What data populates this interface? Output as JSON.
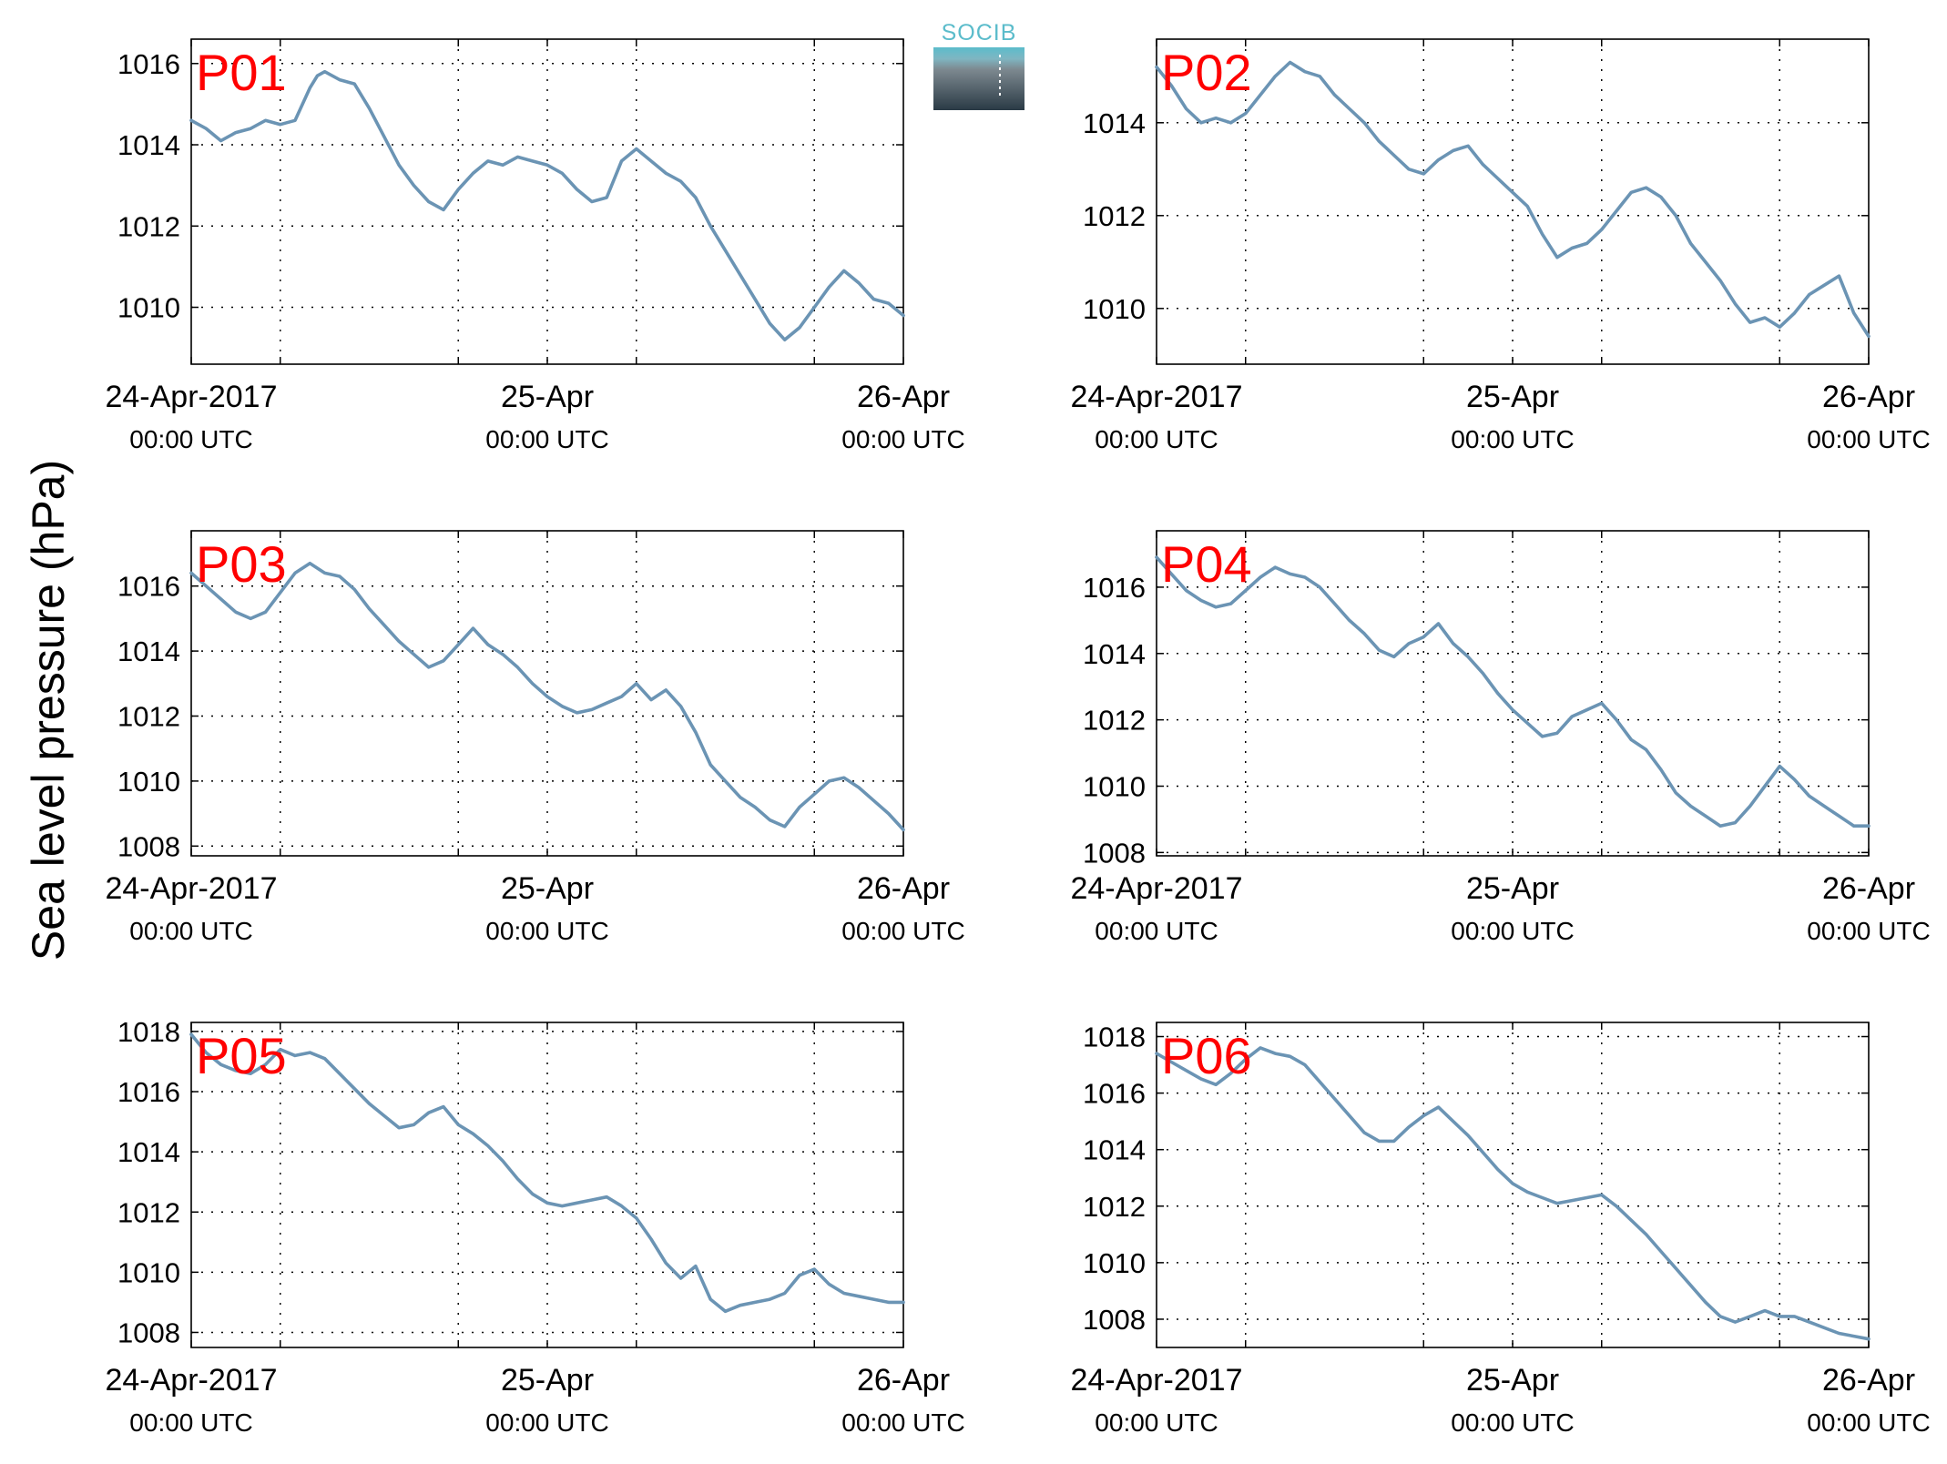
{
  "chart_data": {
    "type": "line",
    "ylabel": "Sea level pressure (hPa)",
    "logo_text": "SOCIB",
    "line_color": "#6b94b4",
    "label_color": "#ff0000",
    "x_ticks": [
      {
        "x": 0,
        "date": "24-Apr-2017",
        "time": "00:00 UTC"
      },
      {
        "x": 24,
        "date": "25-Apr",
        "time": "00:00 UTC"
      },
      {
        "x": 48,
        "date": "26-Apr",
        "time": "00:00 UTC"
      }
    ],
    "x_gridlines": [
      6,
      18,
      30,
      42
    ],
    "xlim": [
      0,
      48
    ],
    "grid": "dotted",
    "panels": [
      {
        "name": "P01",
        "ylim": [
          1008.6,
          1016.6
        ],
        "yticks": [
          1010,
          1012,
          1014,
          1016
        ],
        "x": [
          0,
          1,
          2,
          3,
          4,
          5,
          6,
          7,
          8,
          8.5,
          9,
          10,
          11,
          12,
          13,
          14,
          15,
          16,
          17,
          18,
          19,
          20,
          21,
          22,
          23,
          24,
          25,
          26,
          27,
          28,
          29,
          30,
          31,
          32,
          33,
          34,
          35,
          36,
          37,
          38,
          39,
          40,
          41,
          42,
          43,
          44,
          45,
          46,
          47,
          48
        ],
        "y": [
          1014.6,
          1014.4,
          1014.1,
          1014.3,
          1014.4,
          1014.6,
          1014.5,
          1014.6,
          1015.4,
          1015.7,
          1015.8,
          1015.6,
          1015.5,
          1014.9,
          1014.2,
          1013.5,
          1013,
          1012.6,
          1012.4,
          1012.9,
          1013.3,
          1013.6,
          1013.5,
          1013.7,
          1013.6,
          1013.5,
          1013.3,
          1012.9,
          1012.6,
          1012.7,
          1013.6,
          1013.9,
          1013.6,
          1013.3,
          1013.1,
          1012.7,
          1012,
          1011.4,
          1010.8,
          1010.2,
          1009.6,
          1009.2,
          1009.5,
          1010,
          1010.5,
          1010.9,
          1010.6,
          1010.2,
          1010.1,
          1009.8
        ]
      },
      {
        "name": "P02",
        "ylim": [
          1008.8,
          1015.8
        ],
        "yticks": [
          1010,
          1012,
          1014
        ],
        "x": [
          0,
          1,
          2,
          3,
          4,
          5,
          6,
          7,
          8,
          9,
          10,
          11,
          12,
          13,
          14,
          15,
          16,
          17,
          18,
          19,
          20,
          21,
          22,
          23,
          24,
          25,
          26,
          27,
          28,
          29,
          30,
          31,
          32,
          33,
          34,
          35,
          36,
          37,
          38,
          39,
          40,
          41,
          42,
          43,
          44,
          45,
          46,
          47,
          48
        ],
        "y": [
          1015.2,
          1014.8,
          1014.3,
          1014,
          1014.1,
          1014,
          1014.2,
          1014.6,
          1015,
          1015.3,
          1015.1,
          1015,
          1014.6,
          1014.3,
          1014,
          1013.6,
          1013.3,
          1013,
          1012.9,
          1013.2,
          1013.4,
          1013.5,
          1013.1,
          1012.8,
          1012.5,
          1012.2,
          1011.6,
          1011.1,
          1011.3,
          1011.4,
          1011.7,
          1012.1,
          1012.5,
          1012.6,
          1012.4,
          1012,
          1011.4,
          1011,
          1010.6,
          1010.1,
          1009.7,
          1009.8,
          1009.6,
          1009.9,
          1010.3,
          1010.5,
          1010.7,
          1009.9,
          1009.4
        ]
      },
      {
        "name": "P03",
        "ylim": [
          1007.7,
          1017.7
        ],
        "yticks": [
          1008,
          1010,
          1012,
          1014,
          1016
        ],
        "x": [
          0,
          1,
          2,
          3,
          4,
          5,
          6,
          7,
          8,
          9,
          10,
          11,
          12,
          13,
          14,
          15,
          16,
          17,
          18,
          19,
          20,
          21,
          22,
          23,
          24,
          25,
          26,
          27,
          28,
          29,
          30,
          31,
          32,
          33,
          34,
          35,
          36,
          37,
          38,
          39,
          40,
          41,
          42,
          43,
          44,
          45,
          46,
          47,
          48
        ],
        "y": [
          1016.4,
          1016,
          1015.6,
          1015.2,
          1015,
          1015.2,
          1015.8,
          1016.4,
          1016.7,
          1016.4,
          1016.3,
          1015.9,
          1015.3,
          1014.8,
          1014.3,
          1013.9,
          1013.5,
          1013.7,
          1014.2,
          1014.7,
          1014.2,
          1013.9,
          1013.5,
          1013,
          1012.6,
          1012.3,
          1012.1,
          1012.2,
          1012.4,
          1012.6,
          1013,
          1012.5,
          1012.8,
          1012.3,
          1011.5,
          1010.5,
          1010,
          1009.5,
          1009.2,
          1008.8,
          1008.6,
          1009.2,
          1009.6,
          1010,
          1010.1,
          1009.8,
          1009.4,
          1009,
          1008.5
        ]
      },
      {
        "name": "P04",
        "ylim": [
          1007.9,
          1017.7
        ],
        "yticks": [
          1008,
          1010,
          1012,
          1014,
          1016
        ],
        "x": [
          0,
          1,
          2,
          3,
          4,
          5,
          6,
          7,
          8,
          9,
          10,
          11,
          12,
          13,
          14,
          15,
          16,
          17,
          18,
          19,
          20,
          21,
          22,
          23,
          24,
          25,
          26,
          27,
          28,
          29,
          30,
          31,
          32,
          33,
          34,
          35,
          36,
          37,
          38,
          39,
          40,
          41,
          42,
          43,
          44,
          45,
          46,
          47,
          48
        ],
        "y": [
          1016.9,
          1016.4,
          1015.9,
          1015.6,
          1015.4,
          1015.5,
          1015.9,
          1016.3,
          1016.6,
          1016.4,
          1016.3,
          1016,
          1015.5,
          1015,
          1014.6,
          1014.1,
          1013.9,
          1014.3,
          1014.5,
          1014.9,
          1014.3,
          1013.9,
          1013.4,
          1012.8,
          1012.3,
          1011.9,
          1011.5,
          1011.6,
          1012.1,
          1012.3,
          1012.5,
          1012,
          1011.4,
          1011.1,
          1010.5,
          1009.8,
          1009.4,
          1009.1,
          1008.8,
          1008.9,
          1009.4,
          1010,
          1010.6,
          1010.2,
          1009.7,
          1009.4,
          1009.1,
          1008.8,
          1008.8
        ]
      },
      {
        "name": "P05",
        "ylim": [
          1007.5,
          1018.3
        ],
        "yticks": [
          1008,
          1010,
          1012,
          1014,
          1016,
          1018
        ],
        "x": [
          0,
          1,
          2,
          3,
          4,
          5,
          6,
          7,
          8,
          9,
          10,
          11,
          12,
          13,
          14,
          15,
          16,
          17,
          18,
          19,
          20,
          21,
          22,
          23,
          24,
          25,
          26,
          27,
          28,
          29,
          30,
          31,
          32,
          33,
          34,
          35,
          36,
          37,
          38,
          39,
          40,
          41,
          42,
          43,
          44,
          45,
          46,
          47,
          48
        ],
        "y": [
          1017.9,
          1017.3,
          1016.9,
          1016.7,
          1016.6,
          1016.9,
          1017.4,
          1017.2,
          1017.3,
          1017.1,
          1016.6,
          1016.1,
          1015.6,
          1015.2,
          1014.8,
          1014.9,
          1015.3,
          1015.5,
          1014.9,
          1014.6,
          1014.2,
          1013.7,
          1013.1,
          1012.6,
          1012.3,
          1012.2,
          1012.3,
          1012.4,
          1012.5,
          1012.2,
          1011.8,
          1011.1,
          1010.3,
          1009.8,
          1010.2,
          1009.1,
          1008.7,
          1008.9,
          1009,
          1009.1,
          1009.3,
          1009.9,
          1010.1,
          1009.6,
          1009.3,
          1009.2,
          1009.1,
          1009,
          1009
        ]
      },
      {
        "name": "P06",
        "ylim": [
          1007,
          1018.5
        ],
        "yticks": [
          1008,
          1010,
          1012,
          1014,
          1016,
          1018
        ],
        "x": [
          0,
          1,
          2,
          3,
          4,
          5,
          6,
          7,
          8,
          9,
          10,
          11,
          12,
          13,
          14,
          15,
          16,
          17,
          18,
          19,
          20,
          21,
          22,
          23,
          24,
          25,
          26,
          27,
          28,
          29,
          30,
          31,
          32,
          33,
          34,
          35,
          36,
          37,
          38,
          39,
          40,
          41,
          42,
          43,
          44,
          45,
          46,
          47,
          48
        ],
        "y": [
          1017.4,
          1017.1,
          1016.8,
          1016.5,
          1016.3,
          1016.7,
          1017.2,
          1017.6,
          1017.4,
          1017.3,
          1017,
          1016.4,
          1015.8,
          1015.2,
          1014.6,
          1014.3,
          1014.3,
          1014.8,
          1015.2,
          1015.5,
          1015,
          1014.5,
          1013.9,
          1013.3,
          1012.8,
          1012.5,
          1012.3,
          1012.1,
          1012.2,
          1012.3,
          1012.4,
          1012,
          1011.5,
          1011,
          1010.4,
          1009.8,
          1009.2,
          1008.6,
          1008.1,
          1007.9,
          1008.1,
          1008.3,
          1008.1,
          1008.1,
          1007.9,
          1007.7,
          1007.5,
          1007.4,
          1007.3
        ]
      }
    ]
  }
}
